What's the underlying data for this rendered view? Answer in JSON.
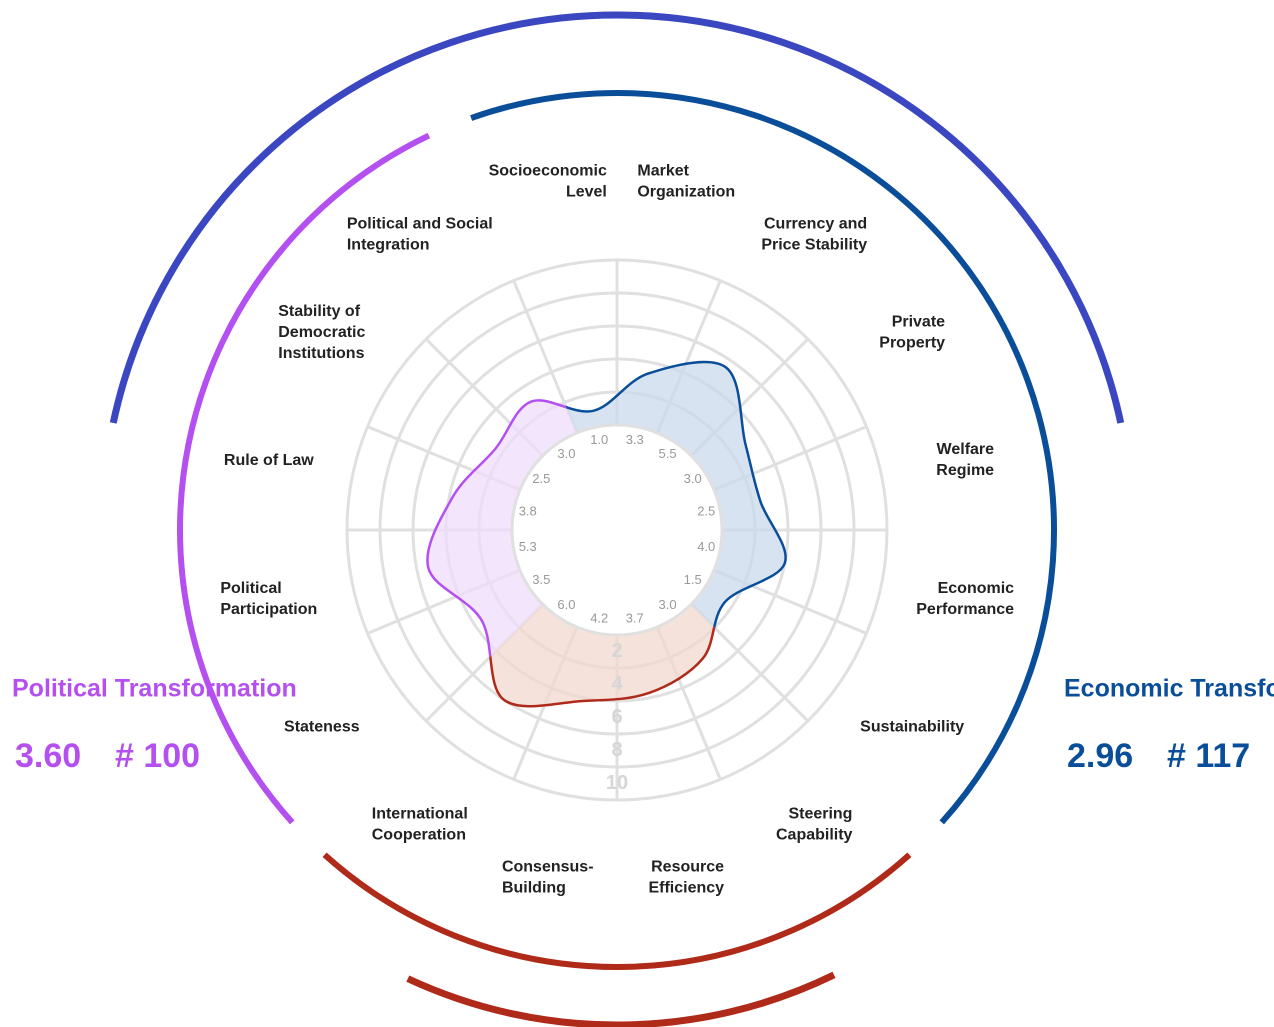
{
  "chart_data": {
    "type": "radar",
    "rlim": [
      0,
      10
    ],
    "rticks": [
      2,
      4,
      6,
      8,
      10
    ],
    "series": [
      {
        "name": "Economic Transformation",
        "color": "#0a4e9a",
        "fill": "#c9d9eb",
        "score": {
          "value": 2.96,
          "label": "2.96"
        },
        "rank": {
          "value": 117,
          "label": "# 117"
        },
        "categories": [
          "Socioeconomic\nLevel",
          "Market\nOrganization",
          "Currency and\nPrice Stability",
          "Private\nProperty",
          "Welfare\nRegime",
          "Economic\nPerformance",
          "Sustainability"
        ],
        "values": [
          1,
          3.3,
          5.5,
          3,
          2.5,
          4,
          1.5
        ],
        "value_labels": [
          "1.0",
          "3.3",
          "5.5",
          "3.0",
          "2.5",
          "4.0",
          "1.5"
        ]
      },
      {
        "color": "#b02a1a",
        "fill": "#f2d8ce",
        "categories": [
          "Steering\nCapability",
          "Resource\nEfficiency",
          "Consensus-\nBuilding",
          "International\nCooperation"
        ],
        "values": [
          3,
          3.7,
          4.2,
          6
        ],
        "value_labels": [
          "3.0",
          "3.7",
          "4.2",
          "6.0"
        ]
      },
      {
        "name": "Political Transformation",
        "color": "#b44ff0",
        "fill": "#efdcfa",
        "score": {
          "value": 3.6,
          "label": "3.60"
        },
        "rank": {
          "value": 100,
          "label": "# 100"
        },
        "categories": [
          "Stateness",
          "Political\nParticipation",
          "Rule of Law",
          "Stability of\nDemocratic\nInstitutions",
          "Political and Social\nIntegration"
        ],
        "values": [
          3.5,
          5.3,
          3.8,
          2.5,
          3
        ],
        "value_labels": [
          "3.5",
          "5.3",
          "3.8",
          "2.5",
          "3.0"
        ]
      }
    ]
  }
}
